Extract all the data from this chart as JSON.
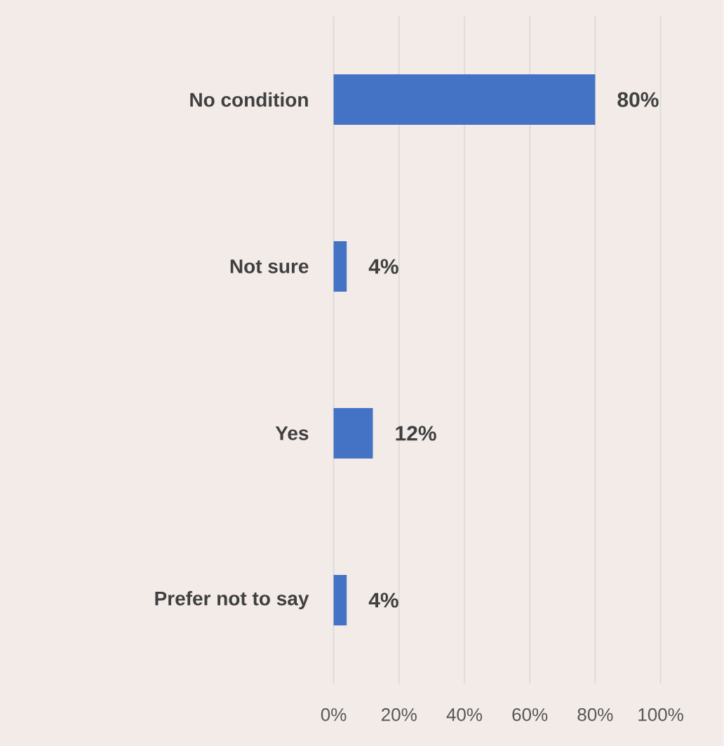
{
  "chart_data": {
    "type": "bar",
    "orientation": "horizontal",
    "categories": [
      "No condition",
      "Not sure",
      "Yes",
      "Prefer not to say"
    ],
    "values": [
      80,
      4,
      12,
      4
    ],
    "value_labels": [
      "80%",
      "4%",
      "12%",
      "4%"
    ],
    "color": "#4472c4",
    "xlim": [
      0,
      100
    ],
    "xticks": [
      {
        "value": 0,
        "label": "0%"
      },
      {
        "value": 20,
        "label": "20%"
      },
      {
        "value": 40,
        "label": "40%"
      },
      {
        "value": 60,
        "label": "60%"
      },
      {
        "value": 80,
        "label": "80%"
      },
      {
        "value": 100,
        "label": "100%"
      }
    ],
    "grid": "x"
  }
}
